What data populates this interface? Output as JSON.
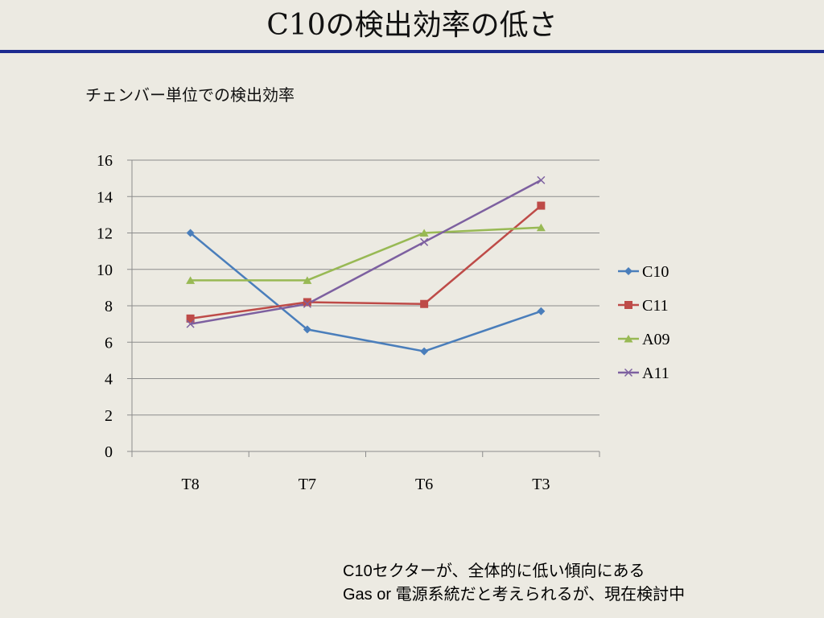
{
  "slide": {
    "title": "C10の検出効率の低さ"
  },
  "chart_data": {
    "type": "line",
    "title": "チェンバー単位での検出効率",
    "categories": [
      "T8",
      "T7",
      "T6",
      "T3"
    ],
    "y_ticks": [
      "0",
      "2",
      "4",
      "6",
      "8",
      "10",
      "12",
      "14",
      "16"
    ],
    "ylim": [
      0,
      16
    ],
    "grid": true,
    "legend_position": "right",
    "series": [
      {
        "name": "C10",
        "color": "#4A7EBB",
        "marker": "diamond",
        "values": [
          12.0,
          6.7,
          5.5,
          7.7
        ]
      },
      {
        "name": "C11",
        "color": "#BE4B48",
        "marker": "square",
        "values": [
          7.3,
          8.2,
          8.1,
          13.5
        ]
      },
      {
        "name": "A09",
        "color": "#98B954",
        "marker": "triangle",
        "values": [
          9.4,
          9.4,
          12.0,
          12.3
        ]
      },
      {
        "name": "A11",
        "color": "#7D60A0",
        "marker": "x",
        "values": [
          7.0,
          8.1,
          11.5,
          14.9
        ]
      }
    ]
  },
  "note": {
    "line1": "C10セクターが、全体的に低い傾向にある",
    "line2": "Gas or 電源系統だと考えられるが、現在検討中"
  }
}
